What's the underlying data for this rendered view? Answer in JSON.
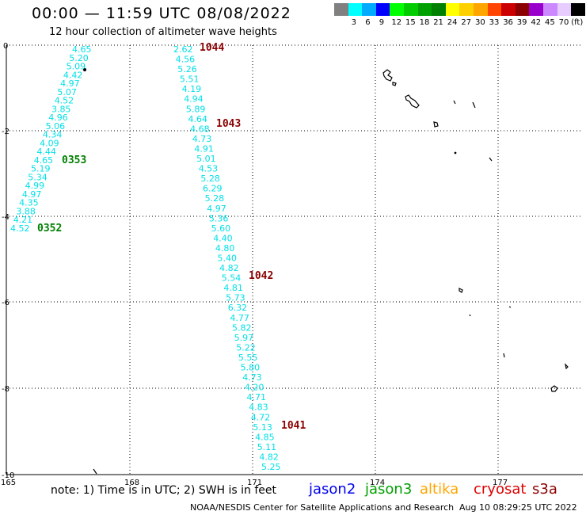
{
  "title": "00:00 — 11:59 UTC 08/08/2022",
  "subtitle": "12 hour collection of altimeter wave heights",
  "color_scale": [
    {
      "color": "#808080",
      "label": ""
    },
    {
      "color": "#00ffff",
      "label": "3"
    },
    {
      "color": "#00aaff",
      "label": "6"
    },
    {
      "color": "#0000ff",
      "label": "9"
    },
    {
      "color": "#00ff00",
      "label": "12"
    },
    {
      "color": "#00cc00",
      "label": "15"
    },
    {
      "color": "#00a000",
      "label": "18"
    },
    {
      "color": "#008000",
      "label": "21"
    },
    {
      "color": "#ffff00",
      "label": "24"
    },
    {
      "color": "#ffd000",
      "label": "27"
    },
    {
      "color": "#ffa500",
      "label": "30"
    },
    {
      "color": "#ff4500",
      "label": "33"
    },
    {
      "color": "#cc0000",
      "label": "36"
    },
    {
      "color": "#8b0000",
      "label": "39"
    },
    {
      "color": "#9900cc",
      "label": "42"
    },
    {
      "color": "#cc88ff",
      "label": "45"
    },
    {
      "color": "#e6ccff",
      "label": "70"
    },
    {
      "color": "#000000",
      "label": "(ft)"
    }
  ],
  "axes": {
    "lon_ticks": [
      "165",
      "168",
      "171",
      "174",
      "177"
    ],
    "lat_ticks": [
      "0",
      "-2",
      "-4",
      "-6",
      "-8",
      "-10"
    ]
  },
  "track1_values": [
    "4.65",
    "5.20",
    "5.09",
    "4.42",
    "4.97",
    "5.07",
    "4.52",
    "3.85",
    "4.96",
    "5.06",
    "4.34",
    "4.09",
    "4.44",
    "4.65",
    "5.19",
    "5.34",
    "4.99",
    "4.97",
    "4.35",
    "3.88",
    "4.21",
    "4.52"
  ],
  "track2_values": [
    "2.62",
    "4.56",
    "5.26",
    "5.51",
    "4.19",
    "4.94",
    "5.89",
    "4.64",
    "4.68",
    "4.73",
    "4.91",
    "5.01",
    "4.53",
    "5.28",
    "6.29",
    "5.28",
    "4.97",
    "5.36",
    "5.60",
    "4.40",
    "4.80",
    "5.40",
    "4.82",
    "5.54",
    "4.81",
    "5.73",
    "6.32",
    "4.77",
    "5.82",
    "5.97",
    "5.22",
    "5.55",
    "5.80",
    "4.73",
    "4.20",
    "4.71",
    "4.83",
    "4.72",
    "5.13",
    "4.85",
    "5.11",
    "4.82",
    "5.25"
  ],
  "time_labels": [
    {
      "text": "1044",
      "color": "#8b0000"
    },
    {
      "text": "1043",
      "color": "#8b0000"
    },
    {
      "text": "0353",
      "color": "#008000"
    },
    {
      "text": "0352",
      "color": "#008000"
    },
    {
      "text": "1042",
      "color": "#8b0000"
    },
    {
      "text": "1041",
      "color": "#8b0000"
    }
  ],
  "note": "note: 1) Time is in UTC; 2) SWH is in feet",
  "satellites": [
    {
      "name": "jason2",
      "color": "#0000ee"
    },
    {
      "name": "jason3",
      "color": "#00a000"
    },
    {
      "name": "altika",
      "color": "#ffa500"
    },
    {
      "name": "cryosat",
      "color": "#dd0000"
    },
    {
      "name": "s3a",
      "color": "#8b0000"
    }
  ],
  "credit": "NOAA/NESDIS Center for Satellite Applications and Research",
  "timestamp": "Aug 10 08:29:25 UTC 2022"
}
